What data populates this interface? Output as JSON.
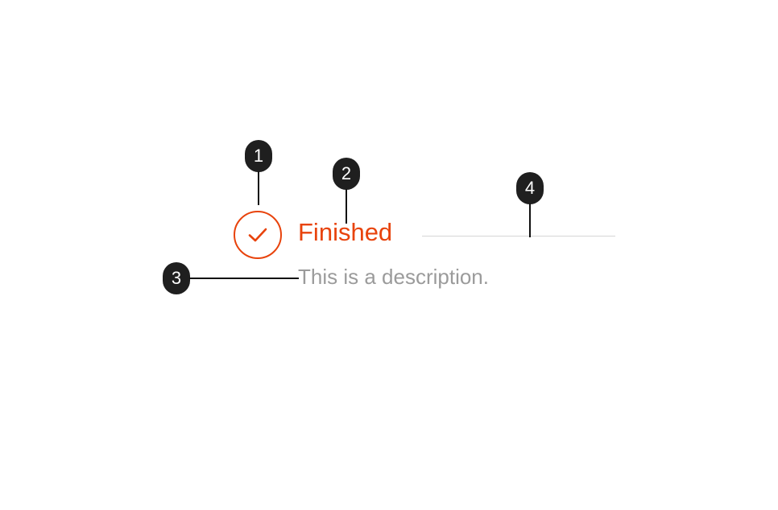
{
  "step": {
    "status": "finished",
    "title": "Finished",
    "description": "This is a description.",
    "icon": "check-icon"
  },
  "colors": {
    "accent": "#E8430C",
    "description": "#9b9b9b",
    "connector": "#d6d6d6",
    "marker": "#1f1f1f"
  },
  "markers": [
    {
      "label": "1"
    },
    {
      "label": "2"
    },
    {
      "label": "3"
    },
    {
      "label": "4"
    }
  ]
}
